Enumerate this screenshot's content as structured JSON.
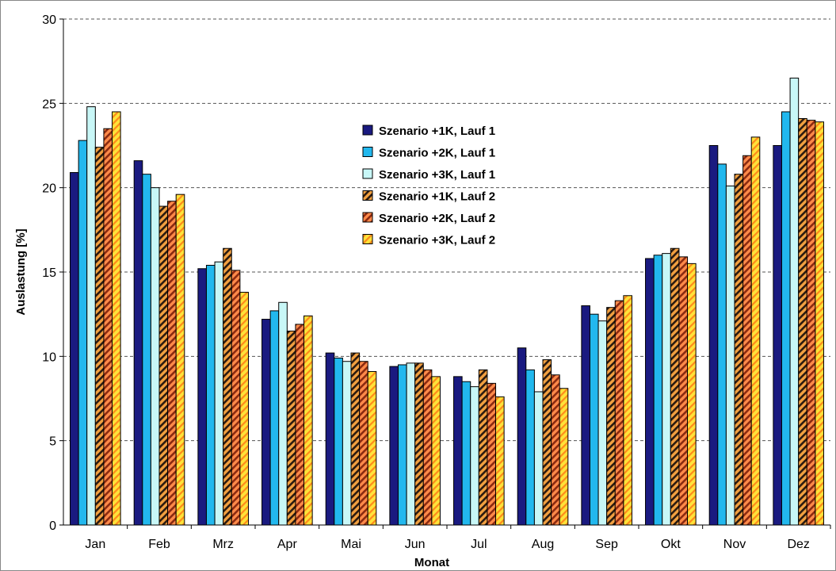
{
  "chart_data": {
    "type": "bar",
    "title": "",
    "xlabel": "Monat",
    "ylabel": "Auslastung [%]",
    "ylim": [
      0,
      30
    ],
    "yticks": [
      0,
      5,
      10,
      15,
      20,
      25,
      30
    ],
    "grid": "horizontal-dashed",
    "legend_position": "center",
    "categories": [
      "Jan",
      "Feb",
      "Mrz",
      "Apr",
      "Mai",
      "Jun",
      "Jul",
      "Aug",
      "Sep",
      "Okt",
      "Nov",
      "Dez"
    ],
    "series": [
      {
        "name": "Szenario +1K, Lauf 1",
        "color": "#1a1a80",
        "pattern": "solid",
        "values": [
          20.9,
          21.6,
          15.2,
          12.2,
          10.2,
          9.4,
          8.8,
          10.5,
          13.0,
          15.8,
          22.5,
          22.5
        ]
      },
      {
        "name": "Szenario +2K, Lauf 1",
        "color": "#22b8ee",
        "pattern": "solid",
        "values": [
          22.8,
          20.8,
          15.4,
          12.7,
          9.9,
          9.5,
          8.5,
          9.2,
          12.5,
          16.0,
          21.4,
          24.5
        ]
      },
      {
        "name": "Szenario +3K, Lauf 1",
        "color": "#c8f7f7",
        "pattern": "solid",
        "values": [
          24.8,
          20.0,
          15.6,
          13.2,
          9.7,
          9.6,
          8.2,
          7.9,
          12.1,
          16.1,
          20.1,
          26.5
        ]
      },
      {
        "name": "Szenario +1K, Lauf 2",
        "color": "#f2a040",
        "stripe": "#2a1a10",
        "pattern": "hatch-dense",
        "values": [
          22.4,
          18.9,
          16.4,
          11.5,
          10.2,
          9.6,
          9.2,
          9.8,
          12.9,
          16.4,
          20.8,
          24.1
        ]
      },
      {
        "name": "Szenario +2K, Lauf 2",
        "color": "#ff8a4a",
        "stripe": "#8a2a10",
        "pattern": "hatch-dense",
        "values": [
          23.5,
          19.2,
          15.1,
          11.9,
          9.7,
          9.2,
          8.4,
          8.9,
          13.3,
          15.9,
          21.9,
          24.0
        ]
      },
      {
        "name": "Szenario +3K, Lauf 2",
        "color": "#ffe23a",
        "stripe": "#ff8a1a",
        "pattern": "hatch-light",
        "values": [
          24.5,
          19.6,
          13.8,
          12.4,
          9.1,
          8.8,
          7.6,
          8.1,
          13.6,
          15.5,
          23.0,
          23.9
        ]
      }
    ]
  }
}
